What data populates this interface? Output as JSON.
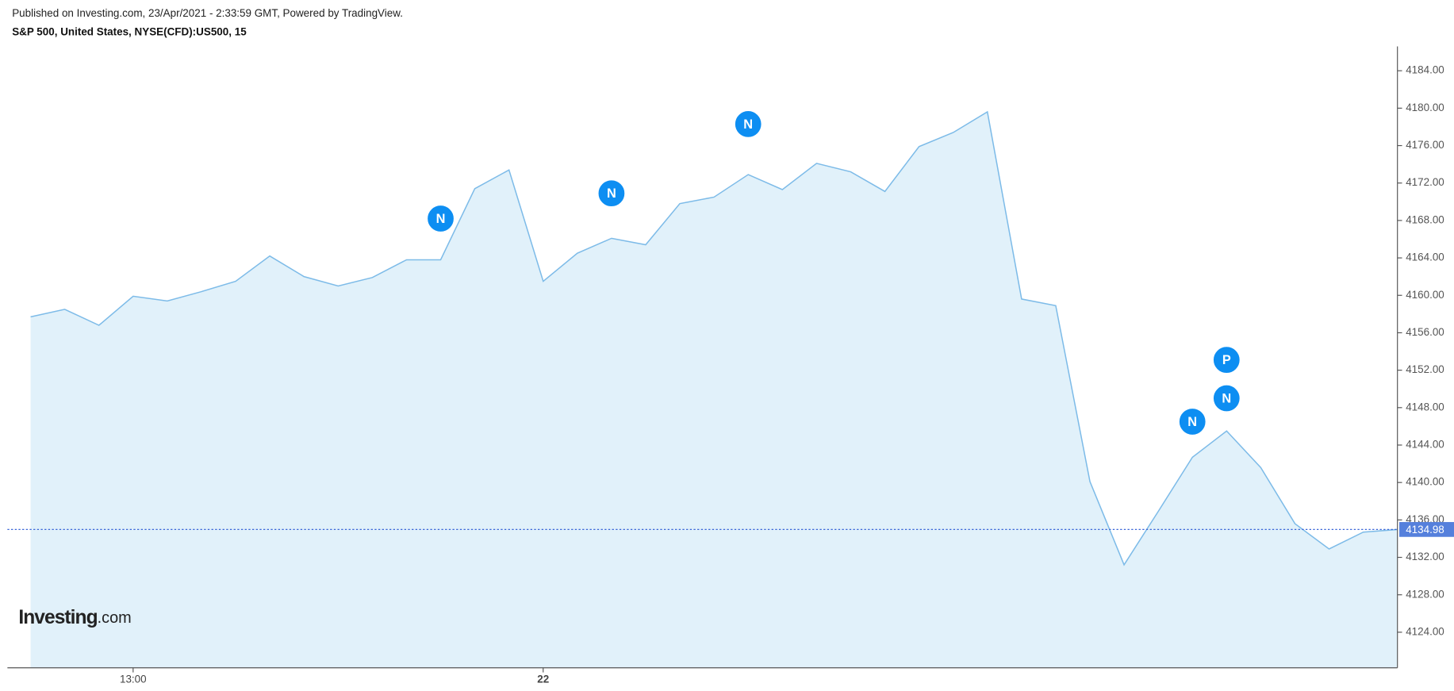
{
  "chart_data": {
    "type": "area",
    "published": "Published on Investing.com, 23/Apr/2021 - 2:33:59 GMT, Powered by TradingView.",
    "title": "S&P 500, United States, NYSE(CFD):US500, 15",
    "logo": {
      "main": "Investing",
      "suffix": ".com"
    },
    "categories": [
      null,
      null,
      null,
      "13:00",
      null,
      null,
      null,
      null,
      null,
      null,
      null,
      null,
      null,
      null,
      null,
      "22",
      null,
      null,
      null,
      null,
      null,
      null,
      null,
      null,
      null,
      null,
      null,
      null,
      null,
      null,
      null,
      null,
      null,
      null,
      null,
      null,
      null,
      null,
      null,
      null,
      null
    ],
    "values": [
      4157.7,
      4158.5,
      4156.8,
      4159.9,
      4159.4,
      4160.4,
      4161.5,
      4164.2,
      4162.0,
      4161.0,
      4161.9,
      4163.8,
      4163.8,
      4171.4,
      4173.4,
      4161.5,
      4164.5,
      4166.1,
      4165.4,
      4169.8,
      4170.5,
      4172.9,
      4171.3,
      4174.1,
      4173.2,
      4171.1,
      4175.9,
      4177.4,
      4179.6,
      4159.6,
      4158.9,
      4140.1,
      4131.2,
      4136.9,
      4142.7,
      4145.5,
      4141.6,
      4135.6,
      4132.9,
      4134.7,
      4134.98
    ],
    "color": "#7dbbe8",
    "fill": "#e1f1fa",
    "ylim": [
      4120.2,
      4186.6
    ],
    "yticks": [
      {
        "value": 4124,
        "label": "4124.00"
      },
      {
        "value": 4128,
        "label": "4128.00"
      },
      {
        "value": 4132,
        "label": "4132.00"
      },
      {
        "value": 4136,
        "label": "4136.00"
      },
      {
        "value": 4140,
        "label": "4140.00"
      },
      {
        "value": 4144,
        "label": "4144.00"
      },
      {
        "value": 4148,
        "label": "4148.00"
      },
      {
        "value": 4152,
        "label": "4152.00"
      },
      {
        "value": 4156,
        "label": "4156.00"
      },
      {
        "value": 4160,
        "label": "4160.00"
      },
      {
        "value": 4164,
        "label": "4164.00"
      },
      {
        "value": 4168,
        "label": "4168.00"
      },
      {
        "value": 4172,
        "label": "4172.00"
      },
      {
        "value": 4176,
        "label": "4176.00"
      },
      {
        "value": 4180,
        "label": "4180.00"
      },
      {
        "value": 4184,
        "label": "4184.00"
      }
    ],
    "last_price": 4134.98,
    "events": [
      {
        "x": 12,
        "y": 4168.2,
        "label": "N"
      },
      {
        "x": 17,
        "y": 4170.9,
        "label": "N"
      },
      {
        "x": 21,
        "y": 4178.3,
        "label": "N"
      },
      {
        "x": 34,
        "y": 4146.5,
        "label": "N"
      },
      {
        "x": 35,
        "y": 4149.0,
        "label": "N"
      },
      {
        "x": 35,
        "y": 4153.1,
        "label": "P"
      }
    ]
  }
}
